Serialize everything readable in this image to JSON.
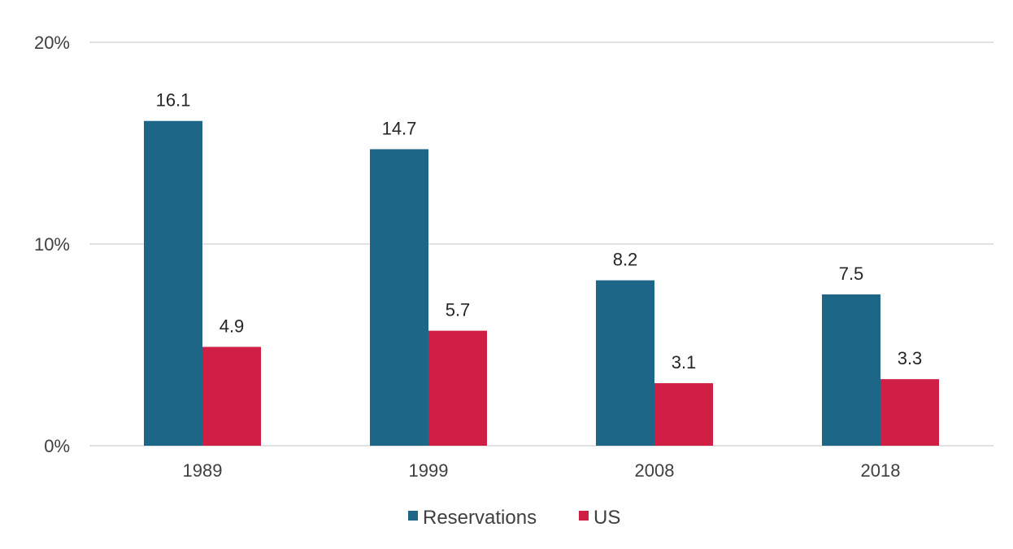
{
  "chart_data": {
    "type": "bar",
    "title": "",
    "xlabel": "",
    "ylabel": "",
    "categories": [
      "1989",
      "1999",
      "2008",
      "2018"
    ],
    "series": [
      {
        "name": "Reservations",
        "values": [
          16.1,
          14.7,
          8.2,
          7.5
        ],
        "color": "#1d6688"
      },
      {
        "name": "US",
        "values": [
          4.9,
          5.7,
          3.1,
          3.3
        ],
        "color": "#cf1f45"
      }
    ],
    "ylim": [
      0,
      20
    ],
    "yticks": [
      0,
      10,
      20
    ],
    "ytick_labels": [
      "0%",
      "10%",
      "20%"
    ],
    "data_labels": true,
    "grid": true,
    "legend": "bottom"
  }
}
